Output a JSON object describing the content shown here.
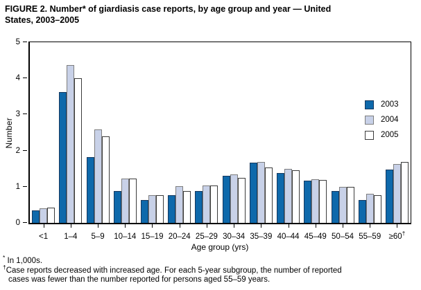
{
  "figure": {
    "title_line1": "FIGURE 2. Number* of giardiasis case reports, by age group and year — United",
    "title_line2": "States, 2003–2005"
  },
  "chart_data": {
    "type": "bar",
    "title": "FIGURE 2. Number* of giardiasis case reports, by age group and year — United States, 2003–2005",
    "xlabel": "Age group (yrs)",
    "ylabel": "Number",
    "units_note": "In 1,000s.",
    "ylim": [
      0,
      5
    ],
    "yticks": [
      0,
      1,
      2,
      3,
      4,
      5
    ],
    "grid": false,
    "legend_position": "top-right-inside",
    "categories": [
      "<1",
      "1–4",
      "5–9",
      "10–14",
      "15–19",
      "20–24",
      "25–29",
      "30–34",
      "35–39",
      "40–44",
      "45–49",
      "50–54",
      "55–59",
      "≥60"
    ],
    "last_category_superscript": "†",
    "series": [
      {
        "name": "2003",
        "fill": "#0e69ab",
        "border": "#16385e",
        "values": [
          0.35,
          3.62,
          1.82,
          0.89,
          0.63,
          0.77,
          0.89,
          1.3,
          1.66,
          1.38,
          1.16,
          0.88,
          0.64,
          1.47
        ]
      },
      {
        "name": "2004",
        "fill": "#c8d1e8",
        "border": "#7d7d7d",
        "values": [
          0.4,
          4.37,
          2.59,
          1.22,
          0.76,
          1.01,
          1.03,
          1.35,
          1.69,
          1.5,
          1.2,
          1.0,
          0.8,
          1.62
        ]
      },
      {
        "name": "2005",
        "fill": "#ffffff",
        "border": "#3a3a3a",
        "values": [
          0.43,
          4.0,
          2.4,
          1.22,
          0.76,
          0.88,
          1.03,
          1.25,
          1.54,
          1.46,
          1.18,
          0.99,
          0.77,
          1.69
        ]
      }
    ]
  },
  "footnotes": {
    "asterisk_symbol": "*",
    "asterisk_text": "In 1,000s.",
    "dagger_symbol": "†",
    "dagger_text_line1": "Case reports decreased with increased age. For each 5-year subgroup, the number of reported",
    "dagger_text_line2": "cases was fewer than the number reported for persons aged 55–59 years."
  }
}
